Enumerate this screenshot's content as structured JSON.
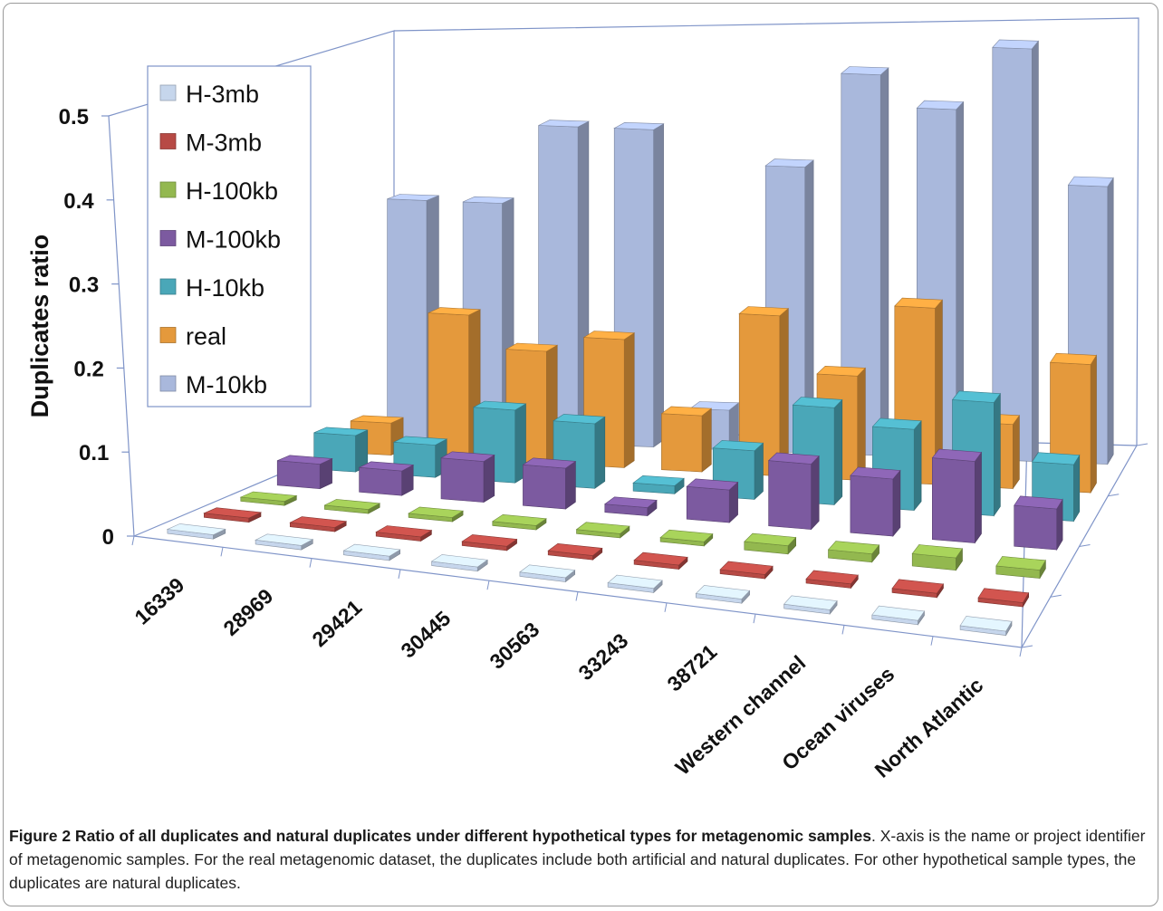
{
  "chart_data": {
    "type": "bar",
    "categories": [
      "16339",
      "28969",
      "29421",
      "30445",
      "30563",
      "33243",
      "38721",
      "Western channel",
      "Ocean viruses",
      "North Atlantic"
    ],
    "ylabel": "Duplicates ratio",
    "ylim": [
      0,
      0.5
    ],
    "yticks": [
      "0",
      "0.1",
      "0.2",
      "0.3",
      "0.4",
      "0.5"
    ],
    "legend_position": "top-left",
    "grid": false,
    "series": [
      {
        "name": "H-3mb",
        "color": "#c6d6ec",
        "values": [
          0.005,
          0.005,
          0.005,
          0.005,
          0.005,
          0.005,
          0.005,
          0.005,
          0.005,
          0.005
        ]
      },
      {
        "name": "M-3mb",
        "color": "#b74a45",
        "values": [
          0.005,
          0.005,
          0.005,
          0.005,
          0.005,
          0.005,
          0.005,
          0.005,
          0.005,
          0.005
        ]
      },
      {
        "name": "H-100kb",
        "color": "#93b84f",
        "values": [
          0.005,
          0.005,
          0.005,
          0.005,
          0.005,
          0.005,
          0.01,
          0.01,
          0.015,
          0.01
        ]
      },
      {
        "name": "M-100kb",
        "color": "#7c5aa0",
        "values": [
          0.03,
          0.03,
          0.05,
          0.05,
          0.01,
          0.04,
          0.08,
          0.07,
          0.1,
          0.05
        ]
      },
      {
        "name": "H-10kb",
        "color": "#4aa7b8",
        "values": [
          0.045,
          0.04,
          0.09,
          0.08,
          0.01,
          0.06,
          0.12,
          0.1,
          0.14,
          0.07
        ]
      },
      {
        "name": "real",
        "color": "#e4993c",
        "values": [
          0.04,
          0.18,
          0.14,
          0.16,
          0.07,
          0.2,
          0.13,
          0.22,
          0.08,
          0.16
        ]
      },
      {
        "name": "M-10kb",
        "color": "#a9b8dc",
        "values": [
          0.3,
          0.3,
          0.4,
          0.4,
          0.05,
          0.36,
          0.48,
          0.44,
          0.52,
          0.35
        ]
      }
    ]
  },
  "caption": {
    "bold": "Figure 2 Ratio of all duplicates and natural duplicates under different hypothetical types for metagenomic samples",
    "text": ". X-axis is the name or project identifier of metagenomic samples. For the real metagenomic dataset, the duplicates include both artificial and natural duplicates. For other hypothetical sample types, the duplicates are natural duplicates."
  }
}
